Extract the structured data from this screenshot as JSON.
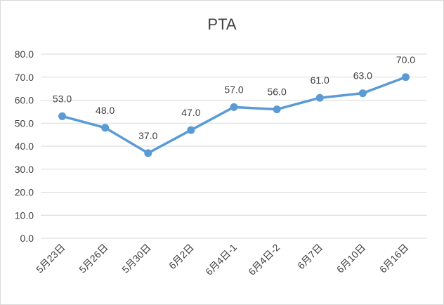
{
  "chart_data": {
    "type": "line",
    "title": "PTA",
    "xlabel": "",
    "ylabel": "",
    "categories": [
      "5月23日",
      "5月26日",
      "5月30日",
      "6月2日",
      "6月4日-1",
      "6月4日-2",
      "6月7日",
      "6月10日",
      "6月16日"
    ],
    "series": [
      {
        "values": [
          53.0,
          48.0,
          37.0,
          47.0,
          57.0,
          56.0,
          61.0,
          63.0,
          70.0
        ]
      }
    ],
    "data_labels": [
      "53.0",
      "48.0",
      "37.0",
      "47.0",
      "57.0",
      "56.0",
      "61.0",
      "63.0",
      "70.0"
    ],
    "ylim": [
      0,
      80
    ],
    "yticks": [
      "0.0",
      "10.0",
      "20.0",
      "30.0",
      "40.0",
      "50.0",
      "60.0",
      "70.0",
      "80.0"
    ],
    "grid": true,
    "legend": "none",
    "colors": {
      "line": "#5b9bd5",
      "grid": "#d9d9d9",
      "text": "#404040"
    }
  }
}
